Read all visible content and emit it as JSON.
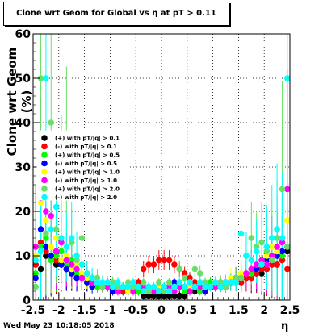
{
  "chart_data": {
    "type": "scatter",
    "title": "Clone wrt Geom for Global vs   η at pT > 0.11",
    "xlabel": "η",
    "ylabel": "Clone wrt Geom (%)",
    "xlim": [
      -2.5,
      2.5
    ],
    "ylim": [
      0,
      60
    ],
    "xticks": [
      "-2.5",
      "-2",
      "-1.5",
      "-1",
      "-0.5",
      "0",
      "0.5",
      "1",
      "1.5",
      "2",
      "2.5"
    ],
    "yticks": [
      "0",
      "10",
      "20",
      "30",
      "40",
      "50",
      "60"
    ],
    "grid": true,
    "legend_position": "left-middle",
    "series": [
      {
        "name": "(+) with pT/|q| > 0.1",
        "color": "#000000",
        "x": [
          -2.45,
          -2.35,
          -2.25,
          -2.15,
          -2.05,
          -1.95,
          -1.85,
          -1.75,
          -1.65,
          -1.55,
          -1.45,
          -1.35,
          -1.25,
          -1.15,
          -1.05,
          -0.95,
          -0.85,
          -0.75,
          -0.65,
          -0.55,
          -0.45,
          -0.35,
          -0.25,
          -0.15,
          -0.05,
          0.05,
          0.15,
          0.25,
          0.35,
          0.45,
          0.55,
          0.65,
          0.75,
          0.85,
          0.95,
          1.05,
          1.15,
          1.25,
          1.35,
          1.45,
          1.55,
          1.65,
          1.75,
          1.85,
          1.95,
          2.05,
          2.15,
          2.25,
          2.35,
          2.45
        ],
        "y": [
          8,
          7,
          10,
          9,
          8,
          8,
          7,
          6,
          5,
          5,
          4,
          4,
          4,
          3,
          3,
          3,
          3,
          2,
          3,
          3,
          2,
          1,
          1,
          1,
          1,
          1,
          1,
          1,
          1,
          1,
          2,
          2,
          3,
          3,
          3,
          3,
          3,
          3,
          4,
          4,
          4,
          5,
          5,
          6,
          6,
          7,
          8,
          8,
          9,
          11
        ]
      },
      {
        "name": "(-) with pT/|q| > 0.1",
        "color": "#ff0000",
        "x": [
          -2.45,
          -2.35,
          -2.25,
          -2.15,
          -2.05,
          -1.95,
          -1.85,
          -1.75,
          -1.65,
          -1.55,
          -1.45,
          -1.35,
          -1.25,
          -1.15,
          -1.05,
          -0.95,
          -0.85,
          -0.75,
          -0.65,
          -0.55,
          -0.45,
          -0.35,
          -0.25,
          -0.15,
          -0.05,
          0.05,
          0.15,
          0.25,
          0.35,
          0.45,
          0.55,
          0.65,
          0.75,
          0.85,
          0.95,
          1.05,
          1.15,
          1.25,
          1.35,
          1.45,
          1.55,
          1.65,
          1.75,
          1.85,
          1.95,
          2.05,
          2.15,
          2.25,
          2.35,
          2.45
        ],
        "y": [
          8,
          13,
          11,
          10,
          9,
          8,
          7,
          6,
          5,
          5,
          4,
          4,
          4,
          3,
          3,
          3,
          3,
          2,
          2,
          3,
          4,
          7,
          8,
          8,
          9,
          9,
          9,
          8,
          7,
          6,
          5,
          4,
          3,
          3,
          3,
          3,
          3,
          3,
          4,
          4,
          4,
          5,
          5,
          6,
          7,
          7,
          8,
          8,
          9,
          7
        ]
      },
      {
        "name": "(+) with pT/|q| > 0.5",
        "color": "#00ff00",
        "x": [
          -2.45,
          -2.35,
          -2.25,
          -2.15,
          -2.05,
          -1.95,
          -1.85,
          -1.75,
          -1.65,
          -1.55,
          -1.45,
          -1.35,
          -1.25,
          -1.15,
          -1.05,
          -0.95,
          -0.85,
          -0.75,
          -0.65,
          -0.55,
          -0.45,
          -0.35,
          -0.25,
          -0.15,
          -0.05,
          0.05,
          0.15,
          0.25,
          0.35,
          0.45,
          0.55,
          0.65,
          0.75,
          0.85,
          0.95,
          1.05,
          1.15,
          1.25,
          1.35,
          1.45,
          1.55,
          1.65,
          1.75,
          1.85,
          1.95,
          2.05,
          2.15,
          2.25,
          2.35,
          2.45
        ],
        "y": [
          6,
          12,
          14,
          9,
          10,
          11,
          8,
          9,
          6,
          5,
          5,
          4,
          3,
          3,
          3,
          4,
          3,
          3,
          2,
          3,
          2,
          3,
          2,
          2,
          2,
          3,
          2,
          3,
          3,
          2,
          3,
          3,
          2,
          3,
          4,
          3,
          3,
          4,
          4,
          5,
          5,
          6,
          6,
          7,
          8,
          9,
          10,
          11,
          10,
          12
        ]
      },
      {
        "name": "(-) with pT/|q| > 0.5",
        "color": "#0000ff",
        "x": [
          -2.45,
          -2.35,
          -2.25,
          -2.15,
          -2.05,
          -1.95,
          -1.85,
          -1.75,
          -1.65,
          -1.55,
          -1.45,
          -1.35,
          -1.25,
          -1.15,
          -1.05,
          -0.95,
          -0.85,
          -0.75,
          -0.65,
          -0.55,
          -0.45,
          -0.35,
          -0.25,
          -0.15,
          -0.05,
          0.05,
          0.15,
          0.25,
          0.35,
          0.45,
          0.55,
          0.65,
          0.75,
          0.85,
          0.95,
          1.05,
          1.15,
          1.25,
          1.35,
          1.45,
          1.55,
          1.65,
          1.75,
          1.85,
          1.95,
          2.05,
          2.15,
          2.25,
          2.35,
          2.45
        ],
        "y": [
          5,
          16,
          12,
          10,
          11,
          8,
          7,
          6,
          5,
          5,
          4,
          3,
          4,
          3,
          3,
          2,
          3,
          3,
          2,
          3,
          3,
          2,
          2,
          2,
          3,
          2,
          3,
          4,
          3,
          3,
          3,
          3,
          3,
          2,
          3,
          3,
          4,
          3,
          4,
          5,
          5,
          6,
          7,
          7,
          8,
          9,
          9,
          10,
          11,
          12
        ]
      },
      {
        "name": "(+) with pT/|q| > 1.0",
        "color": "#ffff00",
        "x": [
          -2.45,
          -2.35,
          -2.25,
          -2.15,
          -2.05,
          -1.95,
          -1.85,
          -1.75,
          -1.65,
          -1.55,
          -1.45,
          -1.35,
          -1.25,
          -1.15,
          -1.05,
          -0.95,
          -0.85,
          -0.75,
          -0.65,
          -0.55,
          -0.45,
          -0.35,
          -0.25,
          -0.15,
          -0.05,
          0.05,
          0.15,
          0.25,
          0.35,
          0.45,
          0.55,
          0.65,
          0.75,
          0.85,
          0.95,
          1.05,
          1.15,
          1.25,
          1.35,
          1.45,
          1.55,
          1.65,
          1.75,
          1.85,
          1.95,
          2.05,
          2.15,
          2.25,
          2.35,
          2.45
        ],
        "y": [
          10,
          22,
          18,
          12,
          14,
          9,
          10,
          7,
          8,
          6,
          5,
          4,
          4,
          3,
          3,
          3,
          3,
          3,
          2,
          3,
          3,
          2,
          2,
          2,
          3,
          2,
          2,
          3,
          3,
          3,
          3,
          3,
          3,
          3,
          3,
          3,
          4,
          4,
          5,
          4,
          6,
          6,
          7,
          8,
          9,
          10,
          12,
          11,
          14,
          18
        ]
      },
      {
        "name": "(-) with pT/|q| > 1.0",
        "color": "#ff00ff",
        "x": [
          -2.45,
          -2.35,
          -2.25,
          -2.15,
          -2.05,
          -1.95,
          -1.85,
          -1.75,
          -1.65,
          -1.55,
          -1.45,
          -1.35,
          -1.25,
          -1.15,
          -1.05,
          -0.95,
          -0.85,
          -0.75,
          -0.65,
          -0.55,
          -0.45,
          -0.35,
          -0.25,
          -0.15,
          -0.05,
          0.05,
          0.15,
          0.25,
          0.35,
          0.45,
          0.55,
          0.65,
          0.75,
          0.85,
          0.95,
          1.05,
          1.15,
          1.25,
          1.35,
          1.45,
          1.55,
          1.65,
          1.75,
          1.85,
          1.95,
          2.05,
          2.15,
          2.25,
          2.35,
          2.45
        ],
        "y": [
          12,
          23,
          20,
          19,
          11,
          13,
          9,
          8,
          7,
          5,
          6,
          4,
          4,
          3,
          3,
          3,
          2,
          3,
          3,
          2,
          3,
          3,
          3,
          2,
          2,
          3,
          3,
          2,
          3,
          3,
          2,
          3,
          3,
          3,
          3,
          3,
          4,
          4,
          4,
          5,
          5,
          6,
          7,
          8,
          9,
          8,
          10,
          12,
          13,
          25
        ]
      },
      {
        "name": "(+) with pT/|q| > 2.0",
        "color": "#66e066",
        "x": [
          -2.45,
          -2.35,
          -2.25,
          -2.15,
          -2.05,
          -1.95,
          -1.85,
          -1.75,
          -1.65,
          -1.55,
          -1.45,
          -1.35,
          -1.25,
          -1.15,
          -1.05,
          -0.95,
          -0.85,
          -0.75,
          -0.65,
          -0.55,
          -0.45,
          -0.35,
          -0.25,
          -0.15,
          -0.05,
          0.05,
          0.15,
          0.25,
          0.35,
          0.45,
          0.55,
          0.65,
          0.75,
          0.85,
          0.95,
          1.05,
          1.15,
          1.25,
          1.35,
          1.45,
          1.55,
          1.65,
          1.75,
          1.85,
          1.95,
          2.05,
          2.15,
          2.25,
          2.35,
          2.45
        ],
        "y": [
          3,
          50,
          15,
          40,
          16,
          25,
          33,
          13,
          9,
          14,
          6,
          5,
          5,
          3,
          4,
          4,
          3,
          3,
          4,
          3,
          3,
          4,
          2,
          3,
          4,
          2,
          4,
          3,
          7,
          5,
          4,
          7,
          6,
          4,
          3,
          4,
          4,
          3,
          4,
          5,
          5,
          10,
          14,
          12,
          13,
          11,
          9,
          14,
          25,
          12
        ]
      },
      {
        "name": "(-) with pT/|q| > 2.0",
        "color": "#00ffff",
        "x": [
          -2.45,
          -2.35,
          -2.25,
          -2.15,
          -2.05,
          -1.95,
          -1.85,
          -1.75,
          -1.65,
          -1.55,
          -1.45,
          -1.35,
          -1.25,
          -1.15,
          -1.05,
          -0.95,
          -0.85,
          -0.75,
          -0.65,
          -0.55,
          -0.45,
          -0.35,
          -0.25,
          -0.15,
          -0.05,
          0.05,
          0.15,
          0.25,
          0.35,
          0.45,
          0.55,
          0.65,
          0.75,
          0.85,
          0.95,
          1.05,
          1.15,
          1.25,
          1.35,
          1.45,
          1.55,
          1.65,
          1.75,
          1.85,
          1.95,
          2.05,
          2.15,
          2.25,
          2.35,
          2.45
        ],
        "y": [
          9,
          11,
          50,
          16,
          21,
          14,
          12,
          14,
          10,
          8,
          6,
          5,
          4,
          4,
          4,
          3,
          4,
          3,
          3,
          4,
          3,
          2,
          3,
          3,
          2,
          3,
          2,
          3,
          4,
          3,
          4,
          3,
          4,
          3,
          3,
          4,
          3,
          4,
          4,
          4,
          15,
          10,
          9,
          11,
          8,
          12,
          14,
          16,
          14,
          50
        ]
      }
    ]
  },
  "footer": {
    "timestamp": "Wed May 23 10:18:05 2018"
  }
}
